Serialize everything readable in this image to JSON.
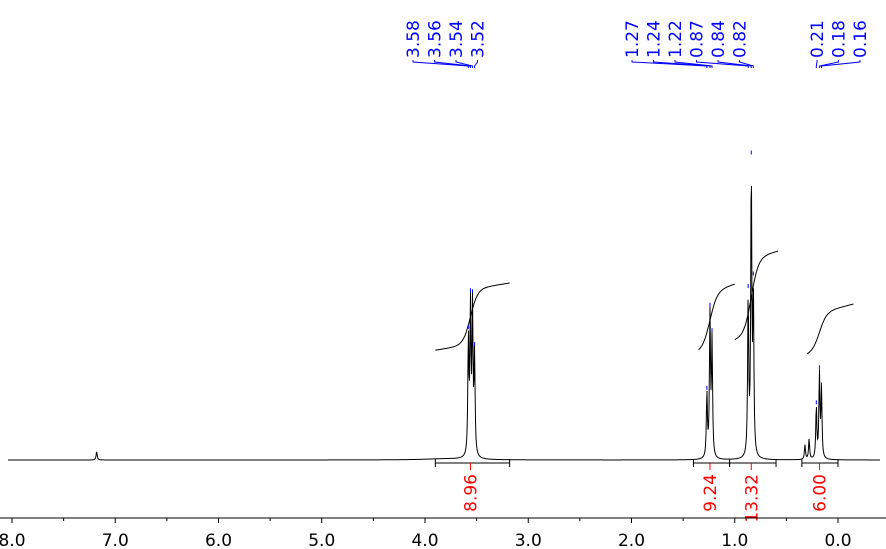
{
  "chart_data": {
    "type": "line",
    "title": "",
    "xlabel": "",
    "ylabel": "",
    "x_axis": {
      "reversed": true,
      "xlim": [
        8.0,
        -0.6
      ],
      "ticks": [
        "8.0",
        "7.0",
        "6.0",
        "5.0",
        "4.0",
        "3.0",
        "2.0",
        "1.0",
        "0.0"
      ]
    },
    "grid": false,
    "colors": {
      "spectrum": "#000000",
      "peak_labels": "#0000ff",
      "integrals": "#ff0000"
    },
    "series": [
      {
        "peaks": [
          {
            "ppm": 7.18,
            "height": 0.03
          },
          {
            "ppm": 3.58,
            "height": 0.4
          },
          {
            "ppm": 3.56,
            "height": 0.5
          },
          {
            "ppm": 3.54,
            "height": 0.5
          },
          {
            "ppm": 3.52,
            "height": 0.34
          },
          {
            "ppm": 1.27,
            "height": 0.22
          },
          {
            "ppm": 1.24,
            "height": 0.49
          },
          {
            "ppm": 1.22,
            "height": 0.4
          },
          {
            "ppm": 0.87,
            "height": 0.55
          },
          {
            "ppm": 0.84,
            "height": 0.99
          },
          {
            "ppm": 0.82,
            "height": 0.55
          },
          {
            "ppm": 0.32,
            "height": 0.05
          },
          {
            "ppm": 0.28,
            "height": 0.07
          },
          {
            "ppm": 0.21,
            "height": 0.18
          },
          {
            "ppm": 0.18,
            "height": 0.29
          },
          {
            "ppm": 0.16,
            "height": 0.23
          }
        ]
      }
    ],
    "peak_labels": [
      {
        "group": [
          {
            "text": "3.58",
            "ppm": 3.58
          },
          {
            "text": "3.56",
            "ppm": 3.56
          },
          {
            "text": "3.54",
            "ppm": 3.54
          },
          {
            "text": "3.52",
            "ppm": 3.52
          }
        ]
      },
      {
        "group": [
          {
            "text": "1.27",
            "ppm": 1.27
          },
          {
            "text": "1.24",
            "ppm": 1.24
          },
          {
            "text": "1.22",
            "ppm": 1.22
          },
          {
            "text": "0.87",
            "ppm": 0.87
          },
          {
            "text": "0.84",
            "ppm": 0.84
          },
          {
            "text": "0.82",
            "ppm": 0.82
          }
        ]
      },
      {
        "group": [
          {
            "text": "0.21",
            "ppm": 0.21
          },
          {
            "text": "0.18",
            "ppm": 0.18
          },
          {
            "text": "0.16",
            "ppm": 0.16
          }
        ]
      }
    ],
    "integrals": [
      {
        "label": "8.96",
        "from_ppm": 3.9,
        "to_ppm": 3.18,
        "center_ppm": 3.56
      },
      {
        "label": "9.24",
        "from_ppm": 1.4,
        "to_ppm": 1.05,
        "center_ppm": 1.24
      },
      {
        "label": "13.32",
        "from_ppm": 1.05,
        "to_ppm": 0.6,
        "center_ppm": 0.84
      },
      {
        "label": "6.00",
        "from_ppm": 0.35,
        "to_ppm": 0.0,
        "center_ppm": 0.18
      }
    ]
  }
}
